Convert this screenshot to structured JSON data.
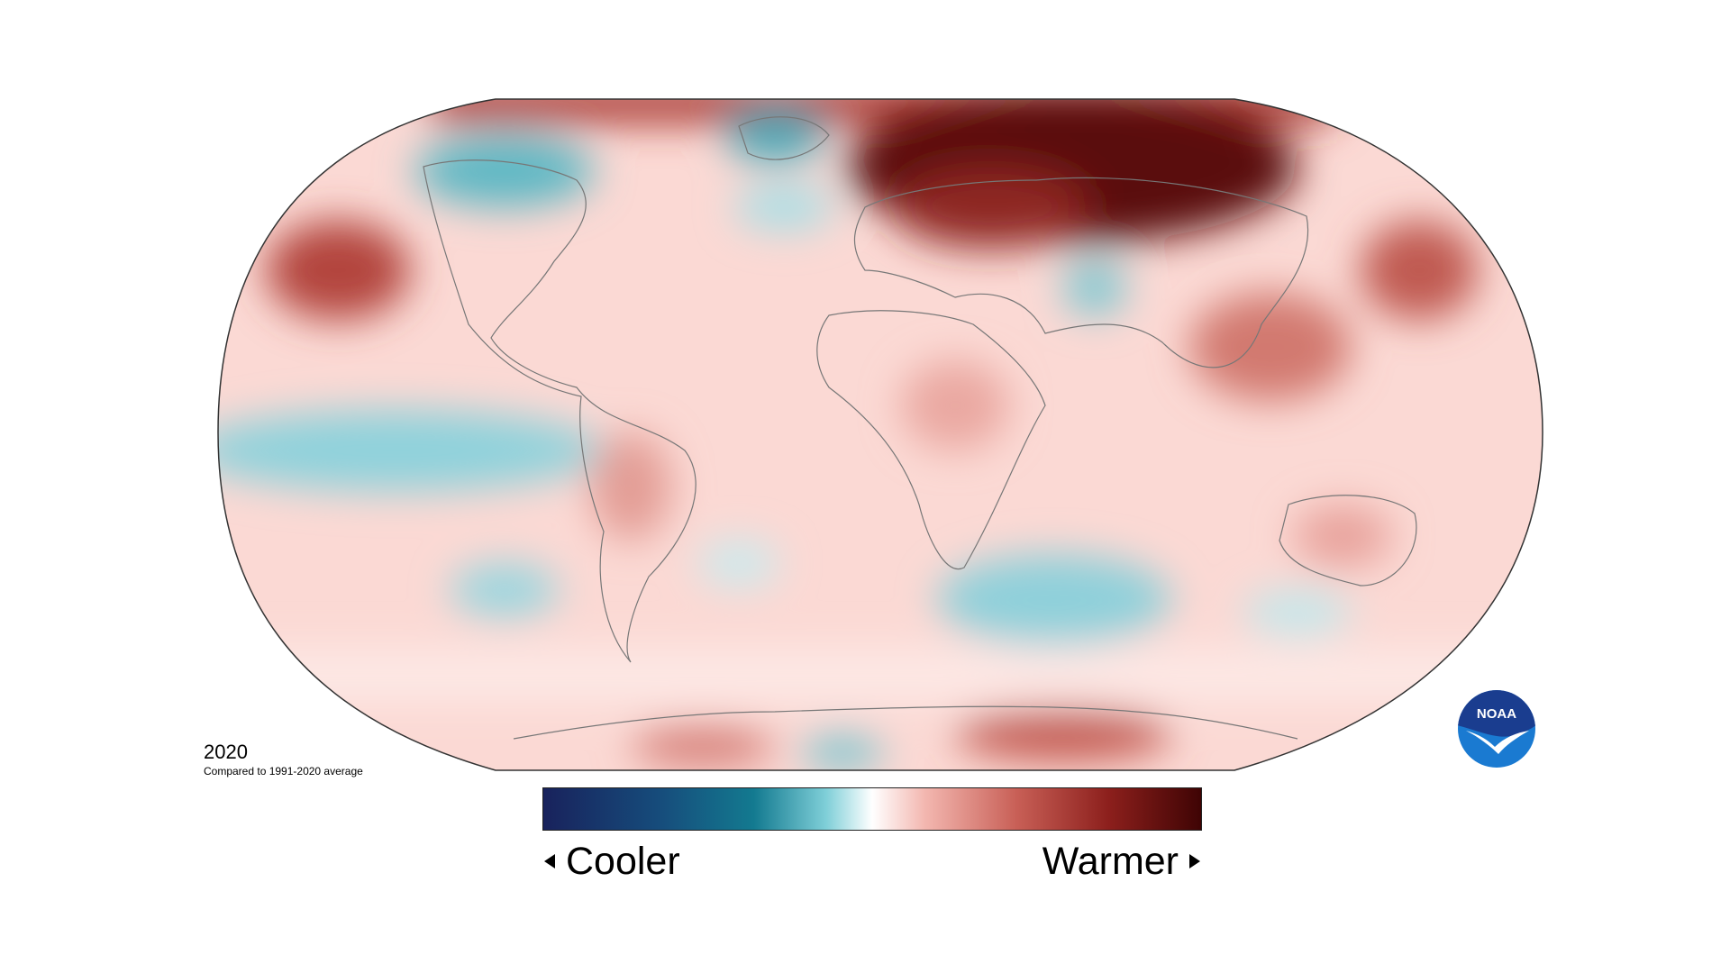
{
  "map": {
    "year": "2020",
    "subtitle": "Compared to 1991-2020 average",
    "projection": "robinson",
    "colors": {
      "cool_darkest": "#1a2a66",
      "cool_mid": "#1b8a9c",
      "cool_light": "#9fdfe6",
      "neutral": "#ffffff",
      "warm_light": "#f2b6b0",
      "warm_mid": "#b84a42",
      "warm_darkest": "#4a0808"
    }
  },
  "legend": {
    "cool_label": "Cooler",
    "warm_label": "Warmer",
    "cool_arrow_icon": "triangle-left-icon",
    "warm_arrow_icon": "triangle-right-icon"
  },
  "logo": {
    "text": "NOAA",
    "icon": "noaa-logo-icon",
    "colors": {
      "top": "#1a3d8f",
      "bottom": "#1a7ad1",
      "bird": "#ffffff"
    }
  }
}
